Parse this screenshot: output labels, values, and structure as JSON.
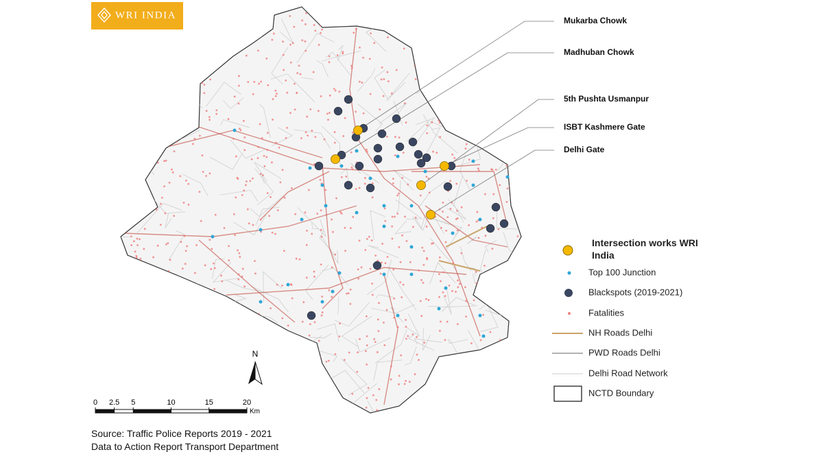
{
  "logo": "WRI INDIA",
  "callouts": [
    "Mukarba Chowk",
    "Madhuban Chowk",
    "5th Pushta Usmanpur",
    "ISBT Kashmere Gate",
    "Delhi Gate"
  ],
  "legend": [
    "Intersection works WRI India",
    "Top 100 Junction",
    "Blackspots (2019-2021)",
    "Fatalities",
    "NH Roads Delhi",
    "PWD Roads Delhi",
    "Delhi Road Network",
    "NCTD Boundary"
  ],
  "north": "N",
  "scale": {
    "ticks": [
      0,
      2.5,
      5,
      10,
      15,
      20
    ],
    "unit": "Km"
  },
  "source": [
    "Source: Traffic Police Reports 2019 - 2021",
    "Data to Action Report Transport Department"
  ]
}
